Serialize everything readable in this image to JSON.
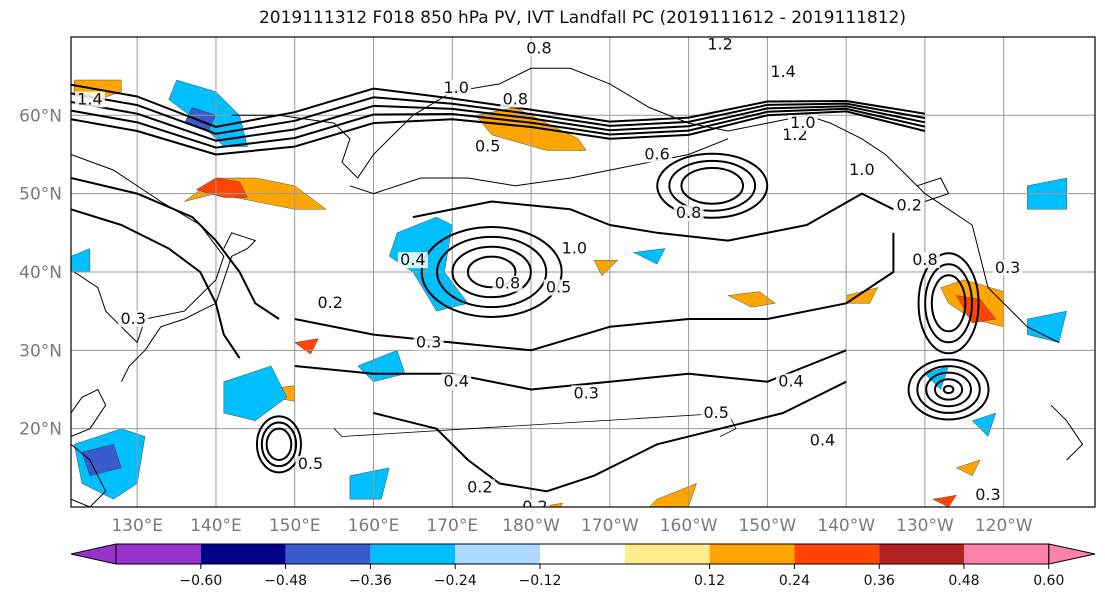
{
  "title": "2019111312 F018 850 hPa PV, IVT Landfall PC (2019111612 - 2019111812)",
  "lat_labels": [
    "60°N",
    "50°N",
    "40°N",
    "30°N",
    "20°N"
  ],
  "lon_labels": [
    "130°E",
    "140°E",
    "150°E",
    "160°E",
    "170°E",
    "180°W",
    "170°W",
    "160°W",
    "150°W",
    "140°W",
    "130°W",
    "120°W"
  ],
  "colorbar": {
    "ticks": [
      "−0.60",
      "−0.48",
      "−0.36",
      "−0.24",
      "−0.12",
      "0.12",
      "0.24",
      "0.36",
      "0.48",
      "0.60"
    ],
    "colors": [
      "#9932cc",
      "#00008b",
      "#3a5bcc",
      "#00bfff",
      "#add8ff",
      "#ffffff",
      "#ffec8b",
      "#ffa500",
      "#ff4500",
      "#b22222",
      "#ff82ab",
      "#ff82ab"
    ]
  },
  "contour_labels": [
    {
      "text": "1.4",
      "lon": 124.0,
      "lat": 61.5
    },
    {
      "text": "1.2",
      "lon": 204.0,
      "lat": 68.5
    },
    {
      "text": "1.4",
      "lon": 212.0,
      "lat": 65.0
    },
    {
      "text": "1.2",
      "lon": 213.5,
      "lat": 57.0
    },
    {
      "text": "1.0",
      "lon": 214.5,
      "lat": 58.5
    },
    {
      "text": "1.0",
      "lon": 170.5,
      "lat": 63.0
    },
    {
      "text": "0.8",
      "lon": 178.0,
      "lat": 61.5
    },
    {
      "text": "0.8",
      "lon": 181.0,
      "lat": 68.0
    },
    {
      "text": "0.5",
      "lon": 174.5,
      "lat": 55.5
    },
    {
      "text": "0.6",
      "lon": 196.0,
      "lat": 54.5
    },
    {
      "text": "0.8",
      "lon": 200.0,
      "lat": 47.0
    },
    {
      "text": "1.0",
      "lon": 222.0,
      "lat": 52.5
    },
    {
      "text": "0.2",
      "lon": 228.0,
      "lat": 48.0
    },
    {
      "text": "0.8",
      "lon": 230.0,
      "lat": 41.0
    },
    {
      "text": "0.3",
      "lon": 240.5,
      "lat": 40.0
    },
    {
      "text": "0.4",
      "lon": 165.0,
      "lat": 41.0
    },
    {
      "text": "0.8",
      "lon": 177.0,
      "lat": 38.0
    },
    {
      "text": "0.5",
      "lon": 183.5,
      "lat": 37.5
    },
    {
      "text": "1.0",
      "lon": 185.5,
      "lat": 42.5
    },
    {
      "text": "0.2",
      "lon": 154.5,
      "lat": 35.5
    },
    {
      "text": "0.3",
      "lon": 129.5,
      "lat": 33.5
    },
    {
      "text": "0.3",
      "lon": 167.0,
      "lat": 30.5
    },
    {
      "text": "0.4",
      "lon": 170.5,
      "lat": 25.5
    },
    {
      "text": "0.3",
      "lon": 187.0,
      "lat": 24.0
    },
    {
      "text": "0.4",
      "lon": 213.0,
      "lat": 25.5
    },
    {
      "text": "0.5",
      "lon": 203.5,
      "lat": 21.5
    },
    {
      "text": "0.4",
      "lon": 217.0,
      "lat": 18.0
    },
    {
      "text": "0.2",
      "lon": 173.5,
      "lat": 12.0
    },
    {
      "text": "0.2",
      "lon": 180.5,
      "lat": 9.5
    },
    {
      "text": "0.5",
      "lon": 152.0,
      "lat": 15.0
    },
    {
      "text": "0.3",
      "lon": 238.0,
      "lat": 11.0
    }
  ]
}
